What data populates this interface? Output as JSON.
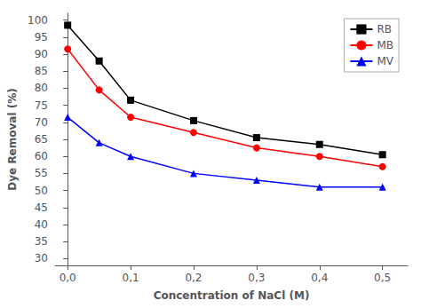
{
  "chart_data": {
    "type": "line",
    "xlabel": "Concentration of NaCl (M)",
    "ylabel": "Dye Removal (%)",
    "x": [
      0.0,
      0.05,
      0.1,
      0.2,
      0.3,
      0.4,
      0.5
    ],
    "series": [
      {
        "name": "RB",
        "color": "#000000",
        "marker": "square",
        "values": [
          98.5,
          88.0,
          76.5,
          70.5,
          65.5,
          63.5,
          60.5
        ]
      },
      {
        "name": "MB",
        "color": "#ff0000",
        "marker": "circle",
        "values": [
          91.5,
          79.5,
          71.5,
          67.0,
          62.5,
          60.0,
          57.0
        ]
      },
      {
        "name": "MV",
        "color": "#0000ff",
        "marker": "triangle",
        "values": [
          71.5,
          64.0,
          60.0,
          55.0,
          53.0,
          51.0,
          51.0
        ]
      }
    ],
    "xlim": [
      -0.02,
      0.54
    ],
    "xticks": [
      {
        "value": 0.0,
        "label": "0,0"
      },
      {
        "value": 0.1,
        "label": "0,1"
      },
      {
        "value": 0.2,
        "label": "0,2"
      },
      {
        "value": 0.3,
        "label": "0,3"
      },
      {
        "value": 0.4,
        "label": "0,4"
      },
      {
        "value": 0.5,
        "label": "0,5"
      }
    ],
    "ylim": [
      28,
      102
    ],
    "yticks": [
      30,
      35,
      40,
      45,
      50,
      55,
      60,
      65,
      70,
      75,
      80,
      85,
      90,
      95,
      100
    ],
    "grid": false,
    "legend": "upper right"
  }
}
